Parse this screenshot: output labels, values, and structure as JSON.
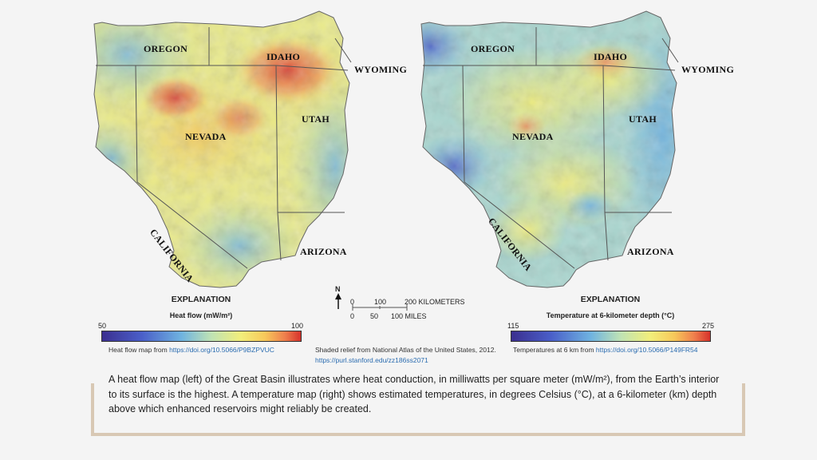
{
  "left_map": {
    "states": [
      "OREGON",
      "IDAHO",
      "WYOMING",
      "NEVADA",
      "UTAH",
      "CALIFORNIA",
      "ARIZONA"
    ],
    "legend": {
      "title": "EXPLANATION",
      "subtitle": "Heat flow (mW/m²)",
      "min": "50",
      "max": "100",
      "credit_text": "Heat flow map  from ",
      "credit_link": "https://doi.org/10.5066/P9BZPVUC"
    }
  },
  "right_map": {
    "states": [
      "OREGON",
      "IDAHO",
      "WYOMING",
      "NEVADA",
      "UTAH",
      "CALIFORNIA",
      "ARIZONA"
    ],
    "legend": {
      "title": "EXPLANATION",
      "subtitle": "Temperature at 6-kilometer depth (°C)",
      "min": "115",
      "max": "275",
      "credit_text": "Temperatures at 6 km from ",
      "credit_link": "https://doi.org/10.5066/P149FR54"
    }
  },
  "scale": {
    "north": "N",
    "km_ticks": [
      "0",
      "100",
      "200 KILOMETERS"
    ],
    "mi_ticks": [
      "0",
      "50",
      "100 MILES"
    ]
  },
  "relief_credit": {
    "text": "Shaded relief from National Atlas of the United States, 2012.",
    "link": "https://purl.stanford.edu/zz186ss2071"
  },
  "caption": "A heat flow map (left) of the Great Basin illustrates where heat conduction, in milliwatts per square meter (mW/m²), from the Earth’s interior to its surface is the highest. A temperature map (right) shows estimated temperatures, in degrees Celsius (°C), at a 6-kilometer (km) depth above which enhanced reservoirs might reliably be created.",
  "colors": {
    "ramp": [
      "#3b2f8f",
      "#4a5fc9",
      "#6fb3e0",
      "#bfe3b4",
      "#f2ee7a",
      "#f7c85a",
      "#ef7f4d",
      "#d6312b"
    ],
    "caption_border": "#d8c8b4",
    "link": "#2b6cb0"
  }
}
